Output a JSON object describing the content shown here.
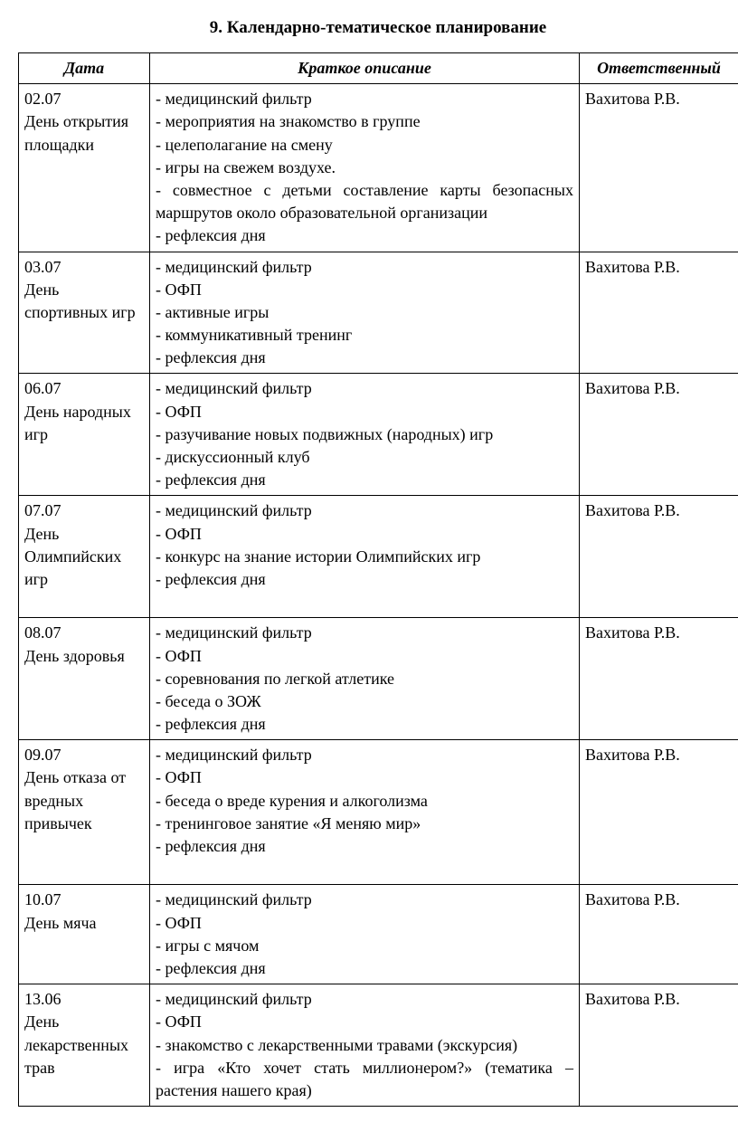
{
  "title": "9. Календарно-тематическое планирование",
  "columns": [
    "Дата",
    "Краткое описание",
    "Ответственный"
  ],
  "rows": [
    {
      "date_lines": [
        "02.07",
        "День открытия площадки"
      ],
      "desc_lines": [
        "- медицинский фильтр",
        "- мероприятия на знакомство в группе",
        "- целеполагание на смену",
        "-  игры на свежем воздухе.",
        "- совместное с детьми составление карты безопасных маршрутов около образовательной организации",
        "- рефлексия дня"
      ],
      "desc_justify": [
        false,
        false,
        false,
        false,
        true,
        false
      ],
      "responsible": " Вахитова Р.В."
    },
    {
      "date_lines": [
        "03.07",
        "День спортивных игр"
      ],
      "desc_lines": [
        "- медицинский фильтр",
        "- ОФП",
        "- активные игры",
        "- коммуникативный тренинг",
        "- рефлексия дня"
      ],
      "desc_justify": [
        false,
        false,
        false,
        false,
        false
      ],
      "responsible": "Вахитова Р.В."
    },
    {
      "date_lines": [
        "06.07",
        "День народных игр"
      ],
      "desc_lines": [
        "- медицинский фильтр",
        "- ОФП",
        "- разучивание новых подвижных (народных) игр",
        "- дискуссионный клуб",
        "- рефлексия дня"
      ],
      "desc_justify": [
        false,
        false,
        false,
        false,
        false
      ],
      "responsible": "Вахитова Р.В."
    },
    {
      "date_lines": [
        "07.07",
        "День Олимпийских игр"
      ],
      "desc_lines": [
        "- медицинский фильтр",
        "- ОФП",
        "- конкурс на знание истории Олимпийских игр",
        "- рефлексия дня",
        " "
      ],
      "desc_justify": [
        false,
        false,
        false,
        false,
        false
      ],
      "responsible": "Вахитова Р.В."
    },
    {
      "date_lines": [
        "08.07",
        "День здоровья"
      ],
      "desc_lines": [
        "- медицинский фильтр",
        "- ОФП",
        "- соревнования по легкой атлетике",
        "- беседа о ЗОЖ",
        "- рефлексия дня"
      ],
      "desc_justify": [
        false,
        false,
        false,
        false,
        false
      ],
      "responsible": "Вахитова Р.В."
    },
    {
      "date_lines": [
        "09.07",
        "День отказа от вредных привычек"
      ],
      "desc_lines": [
        "- медицинский фильтр",
        "- ОФП",
        "- беседа о вреде курения и алкоголизма",
        "- тренинговое занятие «Я меняю мир»",
        "- рефлексия дня",
        " "
      ],
      "desc_justify": [
        false,
        false,
        false,
        false,
        false,
        false
      ],
      "responsible": "Вахитова Р.В."
    },
    {
      "date_lines": [
        "10.07",
        "День мяча"
      ],
      "desc_lines": [
        "- медицинский фильтр",
        "- ОФП",
        "- игры с мячом",
        "- рефлексия дня"
      ],
      "desc_justify": [
        false,
        false,
        false,
        false
      ],
      "responsible": "Вахитова Р.В."
    },
    {
      "date_lines": [
        "13.06",
        "День лекарственных трав"
      ],
      "desc_lines": [
        "- медицинский фильтр",
        "- ОФП",
        "- знакомство с  лекарственными травами (экскурсия)",
        "- игра «Кто хочет стать миллионером?» (тематика – растения нашего края)"
      ],
      "desc_justify": [
        false,
        false,
        false,
        true
      ],
      "responsible": "Вахитова Р.В."
    }
  ]
}
